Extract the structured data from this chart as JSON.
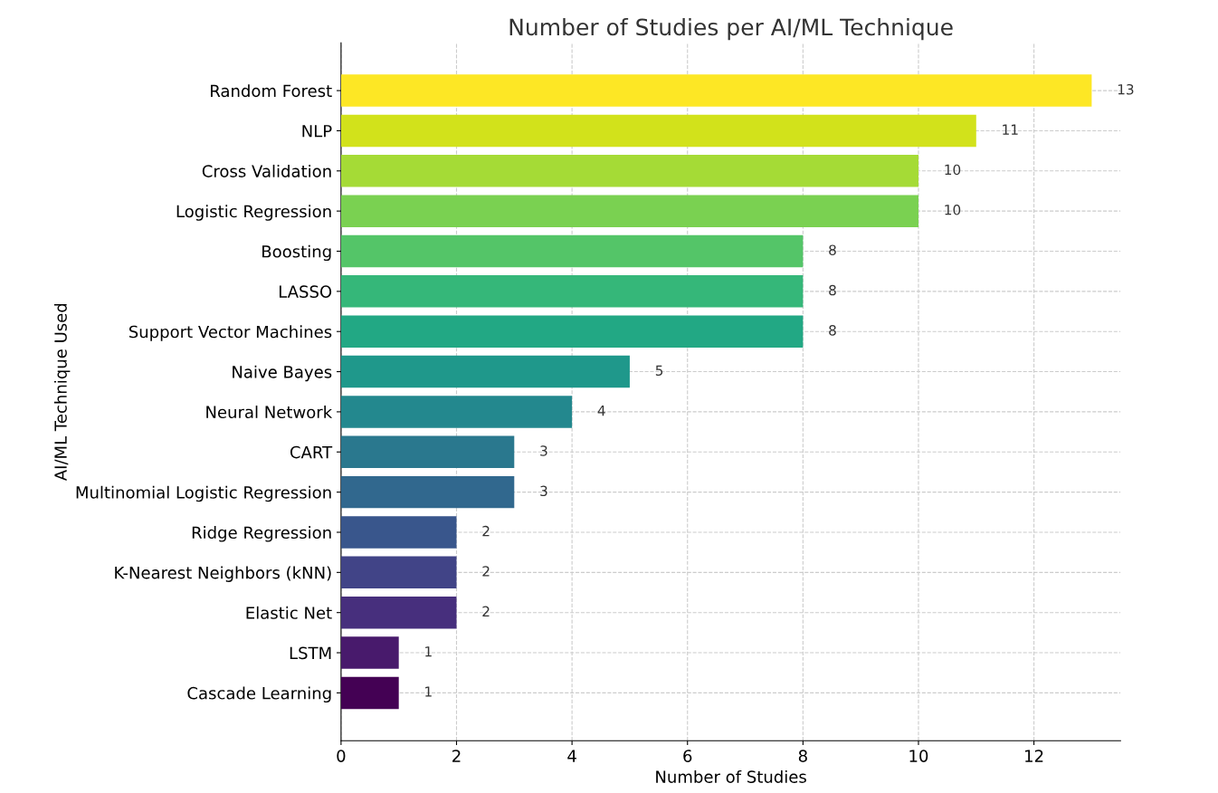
{
  "chart_data": {
    "type": "bar",
    "orientation": "horizontal",
    "title": "Number of Studies per AI/ML Technique",
    "xlabel": "Number of Studies",
    "ylabel": "AI/ML Technique Used",
    "categories": [
      "Random Forest",
      "NLP",
      "Cross Validation",
      "Logistic Regression",
      "Boosting",
      "LASSO",
      "Support Vector Machines",
      "Naive Bayes",
      "Neural Network",
      "CART",
      "Multinomial Logistic Regression",
      "Ridge Regression",
      "K-Nearest Neighbors (kNN)",
      "Elastic Net",
      "LSTM",
      "Cascade Learning"
    ],
    "values": [
      13,
      11,
      10,
      10,
      8,
      8,
      8,
      5,
      4,
      3,
      3,
      2,
      2,
      2,
      1,
      1
    ],
    "colors": [
      "#fde725",
      "#d2e21b",
      "#a5db36",
      "#7ad151",
      "#54c568",
      "#35b779",
      "#22a884",
      "#1f988b",
      "#23888e",
      "#2a788e",
      "#31688e",
      "#39568c",
      "#414487",
      "#472f7d",
      "#481a6c",
      "#440154"
    ],
    "xlim": [
      0,
      13.5
    ],
    "xticks": [
      0,
      2,
      4,
      6,
      8,
      10,
      12
    ],
    "grid": true,
    "data_labels": true
  }
}
